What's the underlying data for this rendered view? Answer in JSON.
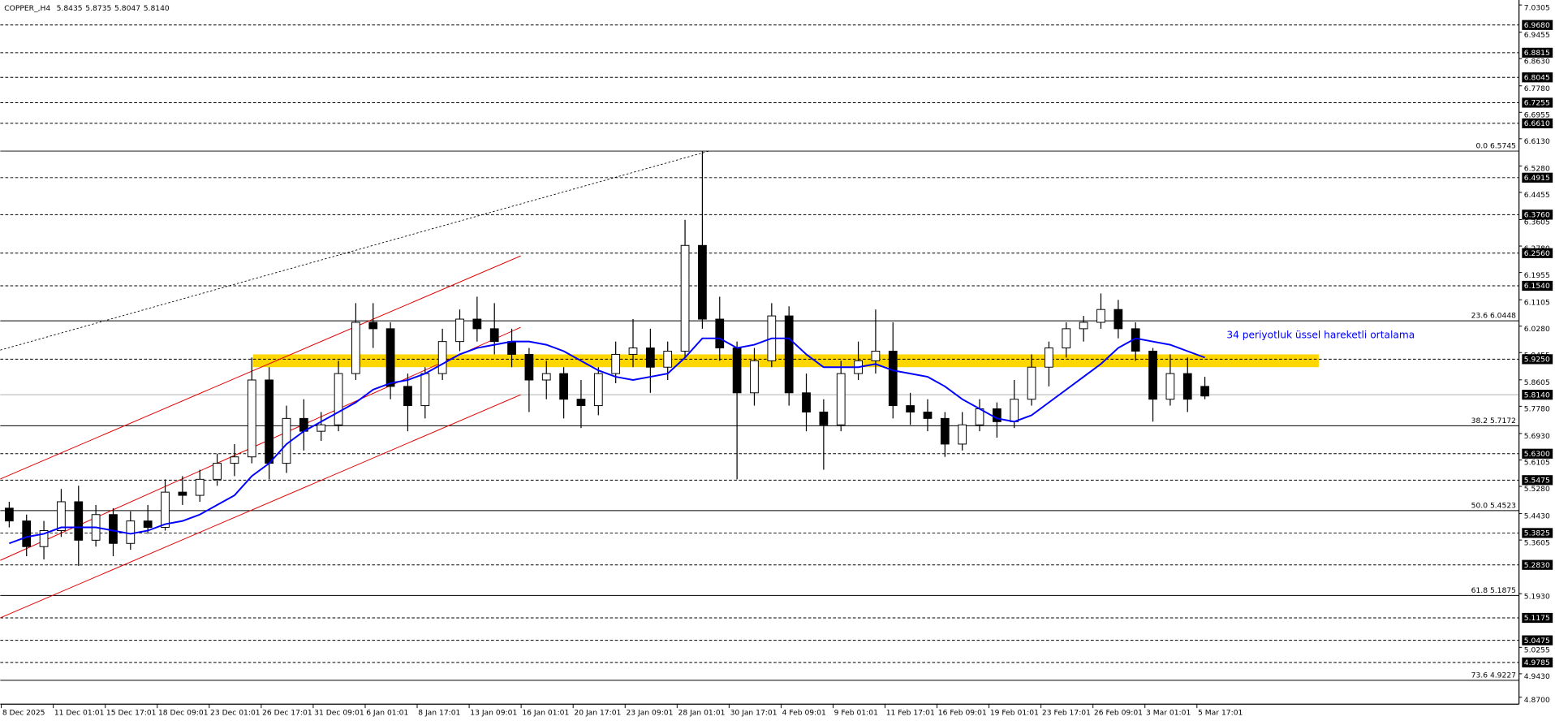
{
  "chart_data": {
    "type": "candlestick",
    "title": "COPPER_,H4",
    "ohlc_header": [
      {
        "value": 5.8435,
        "label": "5.8435"
      },
      {
        "value": 5.8735,
        "label": "5.8735"
      },
      {
        "value": 5.8047,
        "label": "5.8047"
      },
      {
        "value": 5.814,
        "label": "5.8140"
      }
    ],
    "categories": [
      "8 Dec 2025",
      null,
      null,
      "11 Dec 01:01",
      null,
      null,
      "15 Dec 17:01",
      null,
      null,
      "18 Dec 09:01",
      null,
      null,
      "23 Dec 01:01",
      null,
      null,
      "26 Dec 17:01",
      null,
      null,
      "31 Dec 09:01",
      null,
      null,
      "6 Jan 01:01",
      null,
      null,
      "8 Jan 17:01",
      null,
      null,
      "13 Jan 09:01",
      null,
      null,
      "16 Jan 01:01",
      null,
      null,
      "20 Jan 17:01",
      null,
      null,
      "23 Jan 09:01",
      null,
      null,
      "28 Jan 01:01",
      null,
      null,
      "30 Jan 17:01",
      null,
      null,
      "4 Feb 09:01",
      null,
      null,
      "9 Feb 01:01",
      null,
      null,
      "11 Feb 17:01",
      null,
      null,
      "16 Feb 09:01",
      null,
      null,
      "19 Feb 01:01",
      null,
      null,
      "23 Feb 17:01",
      null,
      null,
      "26 Feb 09:01",
      null,
      null,
      "3 Mar 01:01",
      null,
      null,
      "5 Mar 17:01"
    ],
    "ohlc": [
      [
        5.46,
        5.48,
        5.4,
        5.42
      ],
      [
        5.42,
        5.44,
        5.31,
        5.34
      ],
      [
        5.34,
        5.42,
        5.3,
        5.39
      ],
      [
        5.39,
        5.52,
        5.37,
        5.48
      ],
      [
        5.48,
        5.53,
        5.28,
        5.36
      ],
      [
        5.36,
        5.47,
        5.34,
        5.44
      ],
      [
        5.44,
        5.46,
        5.31,
        5.35
      ],
      [
        5.35,
        5.45,
        5.33,
        5.42
      ],
      [
        5.42,
        5.47,
        5.38,
        5.4
      ],
      [
        5.4,
        5.55,
        5.39,
        5.51
      ],
      [
        5.51,
        5.56,
        5.47,
        5.5
      ],
      [
        5.5,
        5.58,
        5.48,
        5.55
      ],
      [
        5.55,
        5.63,
        5.53,
        5.6
      ],
      [
        5.6,
        5.66,
        5.56,
        5.62
      ],
      [
        5.62,
        5.93,
        5.6,
        5.86
      ],
      [
        5.86,
        5.9,
        5.55,
        5.6
      ],
      [
        5.6,
        5.78,
        5.57,
        5.74
      ],
      [
        5.74,
        5.8,
        5.64,
        5.7
      ],
      [
        5.7,
        5.76,
        5.67,
        5.72
      ],
      [
        5.72,
        5.92,
        5.7,
        5.88
      ],
      [
        5.88,
        6.1,
        5.86,
        6.04
      ],
      [
        6.04,
        6.1,
        5.96,
        6.02
      ],
      [
        6.02,
        6.04,
        5.8,
        5.84
      ],
      [
        5.84,
        5.88,
        5.7,
        5.78
      ],
      [
        5.78,
        5.9,
        5.74,
        5.88
      ],
      [
        5.88,
        6.02,
        5.86,
        5.98
      ],
      [
        5.98,
        6.08,
        5.95,
        6.05
      ],
      [
        6.05,
        6.12,
        5.98,
        6.02
      ],
      [
        6.02,
        6.1,
        5.94,
        5.98
      ],
      [
        5.98,
        6.02,
        5.9,
        5.94
      ],
      [
        5.94,
        5.96,
        5.76,
        5.86
      ],
      [
        5.86,
        5.92,
        5.8,
        5.88
      ],
      [
        5.88,
        5.9,
        5.74,
        5.8
      ],
      [
        5.8,
        5.86,
        5.71,
        5.78
      ],
      [
        5.78,
        5.9,
        5.75,
        5.88
      ],
      [
        5.88,
        5.98,
        5.85,
        5.94
      ],
      [
        5.94,
        6.05,
        5.9,
        5.96
      ],
      [
        5.96,
        6.02,
        5.82,
        5.9
      ],
      [
        5.9,
        5.98,
        5.86,
        5.95
      ],
      [
        5.95,
        6.36,
        5.93,
        6.28
      ],
      [
        6.28,
        6.5745,
        6.02,
        6.05
      ],
      [
        6.05,
        6.12,
        5.92,
        5.96
      ],
      [
        5.96,
        5.98,
        5.55,
        5.82
      ],
      [
        5.82,
        5.96,
        5.78,
        5.92
      ],
      [
        5.92,
        6.1,
        5.9,
        6.06
      ],
      [
        6.06,
        6.09,
        5.78,
        5.82
      ],
      [
        5.82,
        5.88,
        5.7,
        5.76
      ],
      [
        5.76,
        5.8,
        5.58,
        5.72
      ],
      [
        5.72,
        5.92,
        5.7,
        5.88
      ],
      [
        5.88,
        5.98,
        5.86,
        5.92
      ],
      [
        5.92,
        6.08,
        5.88,
        5.95
      ],
      [
        5.95,
        6.04,
        5.74,
        5.78
      ],
      [
        5.78,
        5.82,
        5.72,
        5.76
      ],
      [
        5.76,
        5.8,
        5.7,
        5.74
      ],
      [
        5.74,
        5.76,
        5.62,
        5.66
      ],
      [
        5.66,
        5.76,
        5.64,
        5.72
      ],
      [
        5.72,
        5.8,
        5.7,
        5.77
      ],
      [
        5.77,
        5.79,
        5.68,
        5.73
      ],
      [
        5.73,
        5.86,
        5.71,
        5.8
      ],
      [
        5.8,
        5.94,
        5.78,
        5.9
      ],
      [
        5.9,
        5.98,
        5.84,
        5.96
      ],
      [
        5.96,
        6.04,
        5.93,
        6.02
      ],
      [
        6.02,
        6.06,
        5.98,
        6.04
      ],
      [
        6.04,
        6.13,
        6.02,
        6.08
      ],
      [
        6.08,
        6.11,
        5.99,
        6.02
      ],
      [
        6.02,
        6.04,
        5.92,
        5.95
      ],
      [
        5.95,
        5.96,
        5.73,
        5.8
      ],
      [
        5.8,
        5.94,
        5.78,
        5.88
      ],
      [
        5.88,
        5.93,
        5.76,
        5.8
      ],
      [
        5.84,
        5.87,
        5.8,
        5.81
      ]
    ],
    "up_color": "#ffffff",
    "down_color": "#000000",
    "ema": {
      "name": "34 periyotluk üssel hareketli ortalama",
      "color": "#0000ff",
      "values": [
        5.35,
        5.37,
        5.38,
        5.4,
        5.4,
        5.4,
        5.39,
        5.38,
        5.39,
        5.41,
        5.42,
        5.44,
        5.47,
        5.5,
        5.56,
        5.6,
        5.66,
        5.7,
        5.73,
        5.76,
        5.79,
        5.83,
        5.85,
        5.86,
        5.88,
        5.91,
        5.94,
        5.96,
        5.97,
        5.98,
        5.98,
        5.97,
        5.95,
        5.92,
        5.89,
        5.87,
        5.86,
        5.87,
        5.88,
        5.93,
        5.99,
        5.99,
        5.96,
        5.97,
        5.99,
        5.99,
        5.94,
        5.9,
        5.9,
        5.9,
        5.91,
        5.89,
        5.88,
        5.87,
        5.84,
        5.8,
        5.77,
        5.74,
        5.73,
        5.75,
        5.79,
        5.83,
        5.87,
        5.91,
        5.96,
        5.99,
        5.98,
        5.97,
        5.95,
        5.93
      ]
    },
    "zone": {
      "range": [
        5.9,
        5.94
      ],
      "color": "#ffd700"
    },
    "ylim": [
      4.87,
      7.0305
    ],
    "yticks": [
      {
        "value": 7.0305,
        "label": "7.0305"
      },
      {
        "value": 6.9455,
        "label": "6.9455"
      },
      {
        "value": 6.863,
        "label": "6.8630"
      },
      {
        "value": 6.778,
        "label": "6.7780"
      },
      {
        "value": 6.6955,
        "label": "6.6955"
      },
      {
        "value": 6.613,
        "label": "6.6130"
      },
      {
        "value": 6.528,
        "label": "6.5280"
      },
      {
        "value": 6.4455,
        "label": "6.4455"
      },
      {
        "value": 6.3605,
        "label": "6.3605"
      },
      {
        "value": 6.278,
        "label": "6.2780"
      },
      {
        "value": 6.1955,
        "label": "6.1955"
      },
      {
        "value": 6.1105,
        "label": "6.1105"
      },
      {
        "value": 6.028,
        "label": "6.0280"
      },
      {
        "value": 5.9455,
        "label": "5.9455"
      },
      {
        "value": 5.8605,
        "label": "5.8605"
      },
      {
        "value": 5.778,
        "label": "5.7780"
      },
      {
        "value": 5.693,
        "label": "5.6930"
      },
      {
        "value": 5.6105,
        "label": "5.6105"
      },
      {
        "value": 5.528,
        "label": "5.5280"
      },
      {
        "value": 5.443,
        "label": "5.4430"
      },
      {
        "value": 5.3605,
        "label": "5.3605"
      },
      {
        "value": 5.193,
        "label": "5.1930"
      },
      {
        "value": 5.0255,
        "label": "5.0255"
      },
      {
        "value": 4.943,
        "label": "4.9430"
      },
      {
        "value": 4.87,
        "label": "4.8700"
      }
    ],
    "levels": [
      {
        "value": 6.968,
        "label": "6.9680"
      },
      {
        "value": 6.8815,
        "label": "6.8815"
      },
      {
        "value": 6.8045,
        "label": "6.8045"
      },
      {
        "value": 6.7255,
        "label": "6.7255"
      },
      {
        "value": 6.661,
        "label": "6.6610"
      },
      {
        "value": 6.4915,
        "label": "6.4915"
      },
      {
        "value": 6.376,
        "label": "6.3760"
      },
      {
        "value": 6.256,
        "label": "6.2560"
      },
      {
        "value": 6.154,
        "label": "6.1540"
      },
      {
        "value": 5.925,
        "label": "5.9250"
      },
      {
        "value": 5.63,
        "label": "5.6300"
      },
      {
        "value": 5.5475,
        "label": "5.5475"
      },
      {
        "value": 5.3825,
        "label": "5.3825"
      },
      {
        "value": 5.283,
        "label": "5.2830"
      },
      {
        "value": 5.1175,
        "label": "5.1175"
      },
      {
        "value": 5.0475,
        "label": "5.0475"
      },
      {
        "value": 4.9785,
        "label": "4.9785"
      }
    ],
    "current_price": {
      "value": 5.814,
      "label": "5.8140"
    },
    "fib_levels": [
      {
        "value": 6.5745,
        "label": "0.0 6.5745"
      },
      {
        "value": 6.0448,
        "label": "23.6 6.0448"
      },
      {
        "value": 5.7172,
        "label": "38.2 5.7172"
      },
      {
        "value": 5.4523,
        "label": "50.0 5.4523"
      },
      {
        "value": 5.1875,
        "label": "61.8 5.1875"
      },
      {
        "value": 4.9227,
        "label": "73.6 4.9227"
      }
    ]
  }
}
